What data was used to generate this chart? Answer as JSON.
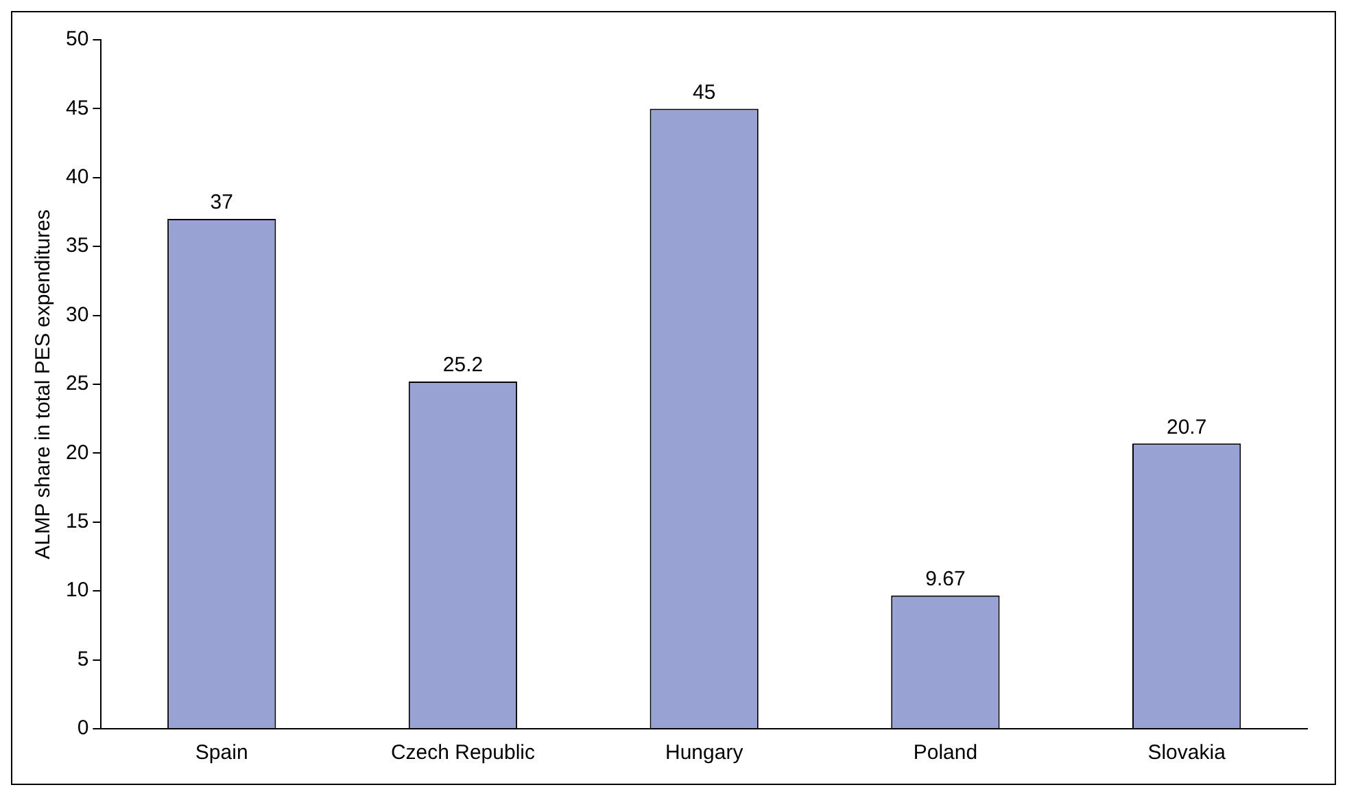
{
  "chart_data": {
    "type": "bar",
    "ylabel": "ALMP share in total PES expenditures",
    "categories": [
      "Spain",
      "Czech Republic",
      "Hungary",
      "Poland",
      "Slovakia"
    ],
    "values": [
      37,
      25.2,
      45,
      9.67,
      20.7
    ],
    "color": "#99a3d3",
    "ylim": [
      0,
      50
    ],
    "yticks": [
      0,
      5,
      10,
      15,
      20,
      25,
      30,
      35,
      40,
      45,
      50
    ],
    "grid": false,
    "legend": false,
    "data_labels": true
  }
}
